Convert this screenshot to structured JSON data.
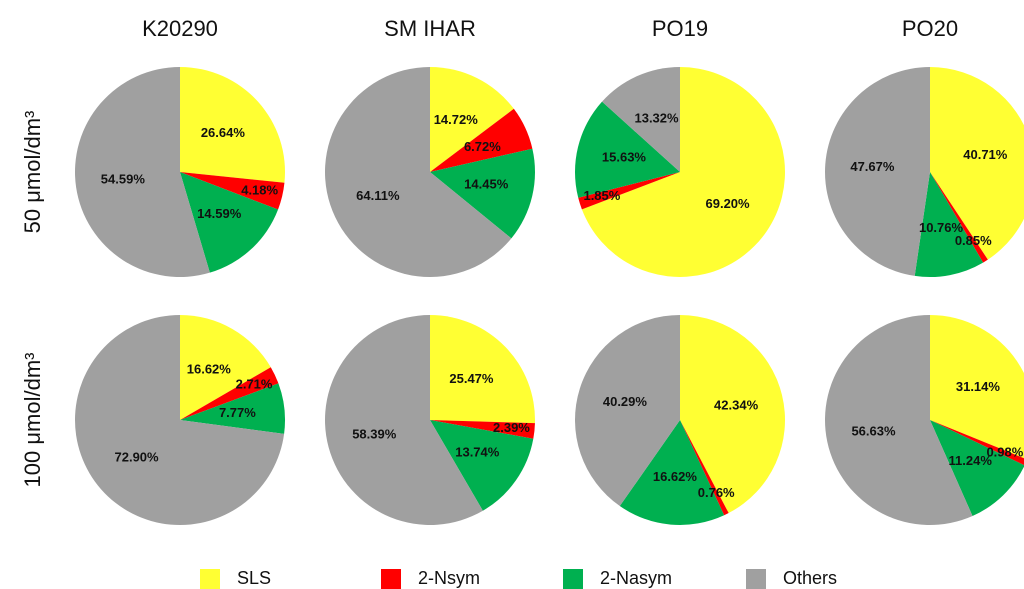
{
  "column_titles": [
    "K20290",
    "SM IHAR",
    "PO19",
    "PO20"
  ],
  "row_labels": [
    "50 μmol/dm³",
    "100 μmol/dm³"
  ],
  "legend": {
    "categories": [
      "SLS",
      "2-Nsym",
      "2-Nasym",
      "Others"
    ],
    "colors": [
      "#ffff33",
      "#ff0000",
      "#00b050",
      "#a0a0a0"
    ]
  },
  "chart_data": [
    {
      "type": "pie",
      "values": [
        26.64,
        4.18,
        14.59,
        54.59
      ],
      "value_labels": [
        "26.64%",
        "4.18%",
        "14.59%",
        "54.59%"
      ]
    },
    {
      "type": "pie",
      "values": [
        14.72,
        6.72,
        14.45,
        64.11
      ],
      "value_labels": [
        "14.72%",
        "6.72%",
        "14.45%",
        "64.11%"
      ]
    },
    {
      "type": "pie",
      "values": [
        69.2,
        1.85,
        15.63,
        13.32
      ],
      "value_labels": [
        "69.20%",
        "1.85%",
        "15.63%",
        "13.32%"
      ]
    },
    {
      "type": "pie",
      "values": [
        40.71,
        0.85,
        10.76,
        47.67
      ],
      "value_labels": [
        "40.71%",
        "0.85%",
        "10.76%",
        "47.67%"
      ]
    },
    {
      "type": "pie",
      "values": [
        16.62,
        2.71,
        7.77,
        72.9
      ],
      "value_labels": [
        "16.62%",
        "2.71%",
        "7.77%",
        "72.90%"
      ]
    },
    {
      "type": "pie",
      "values": [
        25.47,
        2.39,
        13.74,
        58.39
      ],
      "value_labels": [
        "25.47%",
        "2.39%",
        "13.74%",
        "58.39%"
      ]
    },
    {
      "type": "pie",
      "values": [
        42.34,
        0.76,
        16.62,
        40.29
      ],
      "value_labels": [
        "42.34%",
        "0.76%",
        "16.62%",
        "40.29%"
      ]
    },
    {
      "type": "pie",
      "values": [
        31.14,
        0.98,
        11.24,
        56.63
      ],
      "value_labels": [
        "31.14%",
        "0.98%",
        "11.24%",
        "56.63%"
      ]
    }
  ]
}
